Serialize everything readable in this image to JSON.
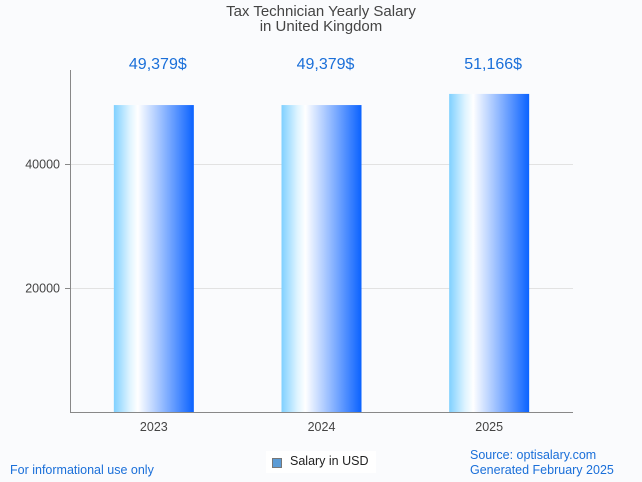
{
  "chart_data": {
    "type": "bar",
    "title": "Tax Technician Yearly Salary",
    "subtitle": "in United Kingdom",
    "categories": [
      "2023",
      "2024",
      "2025"
    ],
    "values": [
      49379,
      49379,
      51166
    ],
    "data_labels": [
      "49,379$",
      "49,379$",
      "51,166$"
    ],
    "yticks": [
      20000,
      40000
    ],
    "ytick_labels": [
      "20000",
      "40000"
    ],
    "ylim": [
      0,
      55000
    ],
    "xlabel": "",
    "ylabel": "",
    "grid": true,
    "legend": [
      "Salary in USD"
    ],
    "legend_position": "bottom-center",
    "colors": {
      "label": "#1a6fd9",
      "bar_light": "#7fd0ff",
      "bar_dark": "#0a62ff"
    }
  },
  "footer": {
    "left": "For informational use only",
    "source": "Source: optisalary.com",
    "generated": "Generated February 2025"
  }
}
